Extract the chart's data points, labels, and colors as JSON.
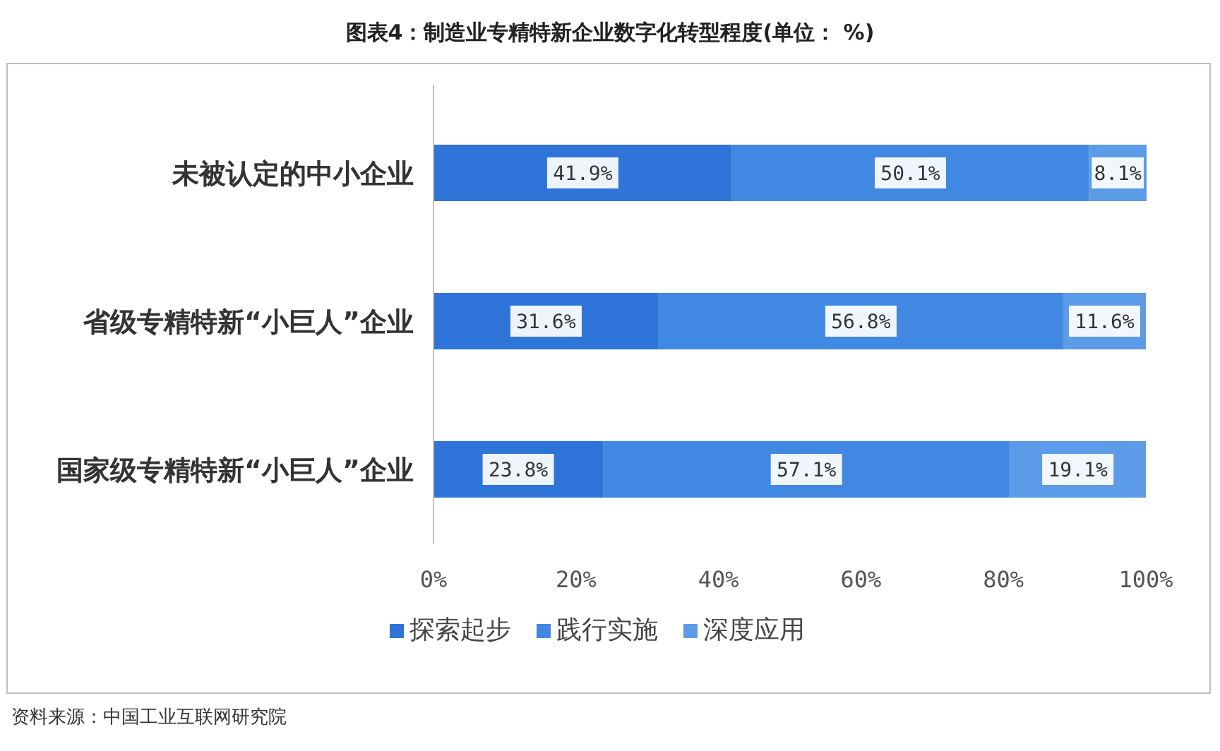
{
  "chart_data": {
    "type": "bar",
    "orientation": "horizontal",
    "stacked": true,
    "title": "图表4：制造业专精特新企业数字化转型程度(单位： %)",
    "categories": [
      "未被认定的中小企业",
      "省级专精特新“小巨人”企业",
      "国家级专精特新“小巨人”企业"
    ],
    "series": [
      {
        "name": "探索起步",
        "color": "#2f74d9",
        "values": [
          41.9,
          31.6,
          23.8
        ],
        "value_labels": [
          "41.9%",
          "31.6%",
          "23.8%"
        ]
      },
      {
        "name": "践行实施",
        "color": "#4188e3",
        "values": [
          50.1,
          56.8,
          57.1
        ],
        "value_labels": [
          "50.1%",
          "56.8%",
          "57.1%"
        ]
      },
      {
        "name": "深度应用",
        "color": "#5b9be8",
        "values": [
          8.1,
          11.6,
          19.1
        ],
        "value_labels": [
          "8.1%",
          "11.6%",
          "19.1%"
        ]
      }
    ],
    "xlim": [
      0,
      100.1
    ],
    "xticks": [
      {
        "value": 0,
        "label": "0%"
      },
      {
        "value": 20,
        "label": "20%"
      },
      {
        "value": 40,
        "label": "40%"
      },
      {
        "value": 60,
        "label": "60%"
      },
      {
        "value": 80,
        "label": "80%"
      },
      {
        "value": 100,
        "label": "100%"
      }
    ],
    "grid": false,
    "legend": "bottom",
    "annotations": [
      "资料来源：中国工业互联网研究院"
    ]
  }
}
